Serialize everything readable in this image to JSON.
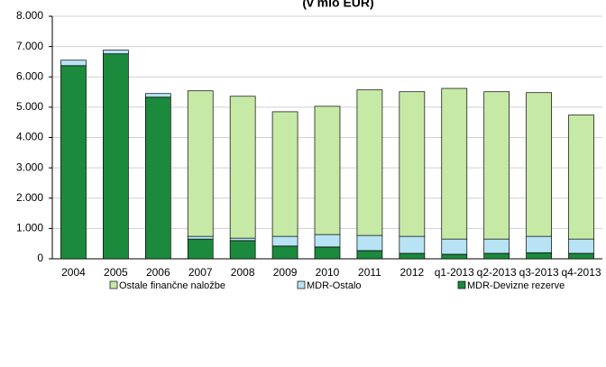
{
  "chart_data": {
    "type": "bar",
    "stacked": true,
    "title": "(v mio EUR)",
    "categories": [
      "2004",
      "2005",
      "2006",
      "2007",
      "2008",
      "2009",
      "2010",
      "2011",
      "2012",
      "q1-2013",
      "q2-2013",
      "q3-2013",
      "q4-2013"
    ],
    "series": [
      {
        "name": "Ostale finančne naložbe",
        "color": "#c7e9a6",
        "values": [
          0,
          0,
          0,
          4800,
          4680,
          4110,
          4230,
          4800,
          4770,
          4970,
          4860,
          4740,
          4090
        ]
      },
      {
        "name": "MDR-Ostalo",
        "color": "#b8e3f5",
        "values": [
          180,
          120,
          120,
          90,
          80,
          320,
          410,
          500,
          560,
          500,
          470,
          540,
          470
        ]
      },
      {
        "name": "MDR-Devizne rezerve",
        "color": "#1b8a3c",
        "values": [
          6370,
          6760,
          5330,
          650,
          600,
          420,
          390,
          270,
          180,
          150,
          180,
          200,
          180
        ]
      }
    ],
    "ylim": [
      0,
      8000
    ],
    "yticks": [
      0,
      {
        "value": 1000,
        "label": "1.000"
      },
      {
        "value": 2000,
        "label": "2.000"
      },
      {
        "value": 3000,
        "label": "3.000"
      },
      {
        "value": 4000,
        "label": "4.000"
      },
      {
        "value": 5000,
        "label": "5.000"
      },
      {
        "value": 6000,
        "label": "6.000"
      },
      {
        "value": 7000,
        "label": "7.000"
      },
      {
        "value": 8000,
        "label": "8.000"
      }
    ],
    "grid": true,
    "legend": "bottom"
  }
}
